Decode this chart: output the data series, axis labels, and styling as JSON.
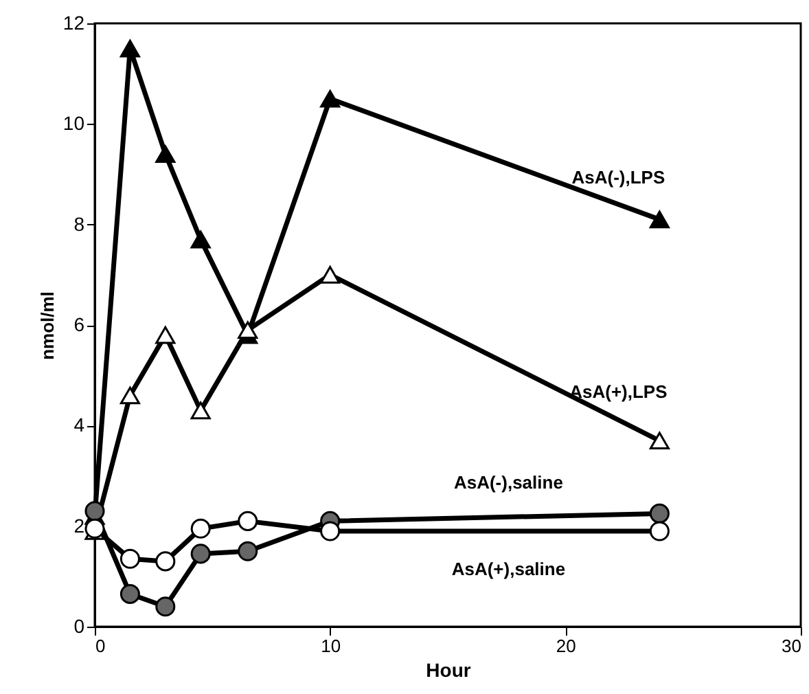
{
  "chart_data": {
    "type": "line",
    "xlabel": "Hour",
    "ylabel": "nmol/ml",
    "x": [
      0,
      1.5,
      3,
      4.5,
      6.5,
      10,
      24
    ],
    "series": [
      {
        "name": "AsA(-),LPS",
        "color": "#000000",
        "marker": "triangle",
        "values": [
          2.2,
          11.5,
          9.4,
          7.7,
          5.8,
          10.5,
          8.1
        ]
      },
      {
        "name": "AsA(+),LPS",
        "color": "#000000",
        "marker": "triangle",
        "values": [
          1.9,
          4.6,
          5.8,
          4.3,
          5.9,
          7.0,
          3.7
        ]
      },
      {
        "name": "AsA(-),saline",
        "color": "#000000",
        "marker": "circle",
        "values": [
          2.3,
          0.65,
          0.4,
          1.45,
          1.5,
          2.1,
          2.25
        ]
      },
      {
        "name": "AsA(+),saline",
        "color": "#000000",
        "marker": "circle",
        "values": [
          1.95,
          1.35,
          1.3,
          1.95,
          2.1,
          1.9,
          1.9
        ]
      }
    ],
    "xlim": [
      0,
      30
    ],
    "xticks": [
      0,
      10,
      20,
      30
    ],
    "ylim": [
      0,
      12
    ],
    "yticks": [
      0,
      2,
      4,
      6,
      8,
      10,
      12
    ],
    "grid": false
  }
}
